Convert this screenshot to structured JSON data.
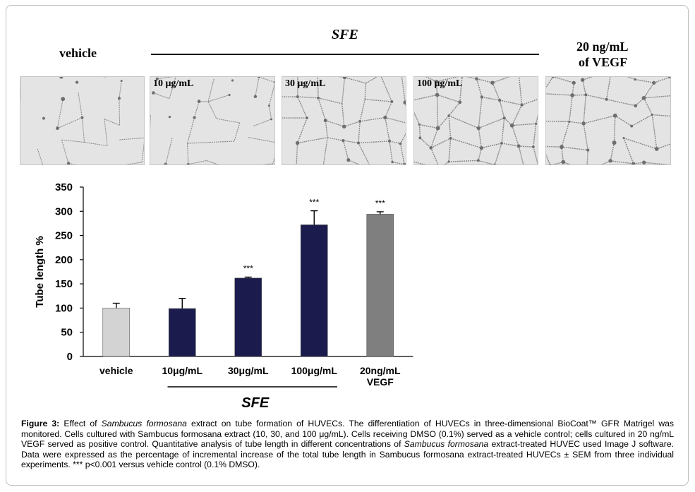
{
  "header": {
    "sfe_label": "SFE",
    "vehicle_label": "vehicle",
    "vegf_label_line1": "20 ng/mL",
    "vegf_label_line2": "of VEGF"
  },
  "panels": [
    {
      "label": ""
    },
    {
      "label": "10 μg/mL"
    },
    {
      "label": "30 μg/mL"
    },
    {
      "label": "100 μg/mL"
    },
    {
      "label": ""
    }
  ],
  "chart_data": {
    "type": "bar",
    "categories": [
      "vehicle",
      "10μg/mL",
      "30μg/mL",
      "100μg/mL",
      "20ng/mL VEGF"
    ],
    "category_lines": [
      [
        "vehicle"
      ],
      [
        "10μg/mL"
      ],
      [
        "30μg/mL"
      ],
      [
        "100μg/mL"
      ],
      [
        "20ng/mL",
        "VEGF"
      ]
    ],
    "values": [
      100,
      99,
      162,
      272,
      294
    ],
    "errors": [
      10,
      21,
      2,
      29,
      5
    ],
    "significance": [
      "",
      "",
      "***",
      "***",
      "***"
    ],
    "colors": [
      "#d3d3d3",
      "#1b1b4d",
      "#1b1b4d",
      "#1b1b4d",
      "#7f7f7f"
    ],
    "ylabel": "Tube length %",
    "xlabel": "",
    "ylim": [
      0,
      350
    ],
    "yticks": [
      0,
      50,
      100,
      150,
      200,
      250,
      300,
      350
    ],
    "group_label": "SFE",
    "grid": false
  },
  "caption": {
    "figure_label": "Figure 3:",
    "part1": " Effect of ",
    "species1": "Sambucus formosana",
    "part2": " extract on tube formation of HUVECs. The differentiation of HUVECs in three-dimensional BioCoat™ GFR Matrigel was monitored. Cells cultured with Sambucus formosana extract (10, 30, and 100 μg/mL). Cells receiving DMSO (0.1%) served as a vehicle control; cells cultured in 20 ng/mL VEGF served as positive control. Quantitative analysis of tube length in different concentrations of ",
    "species2": "Sambucus formosana",
    "part3": " extract-treated HUVEC used Image J software. Data were expressed as the percentage of incremental increase of the total tube length in Sambucus formosana extract-treated HUVECs ± SEM from three individual experiments. *** p<0.001 versus vehicle control (0.1% DMSO)."
  }
}
